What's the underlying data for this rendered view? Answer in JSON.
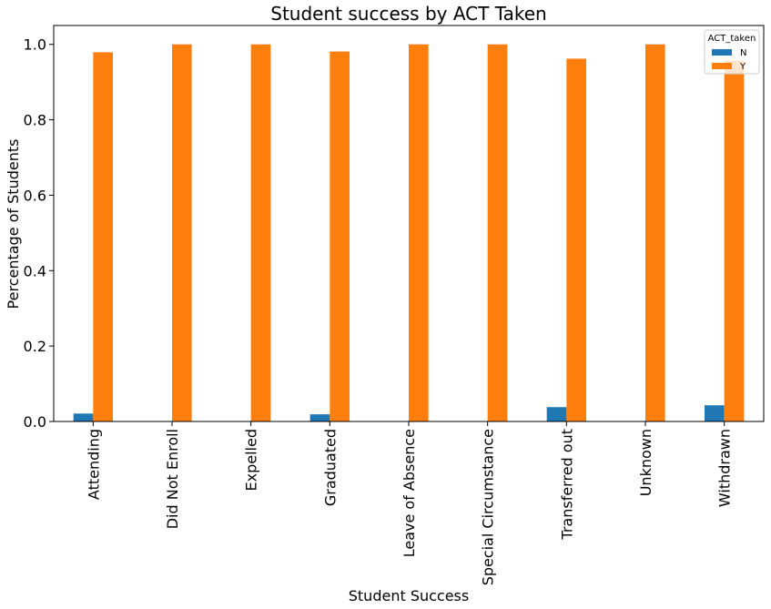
{
  "chart_data": {
    "type": "bar",
    "title": "Student success by ACT Taken",
    "xlabel": "Student Success",
    "ylabel": "Percentage of Students",
    "ylim": [
      0,
      1.05
    ],
    "yticks": [
      "0.0",
      "0.2",
      "0.4",
      "0.6",
      "0.8",
      "1.0"
    ],
    "categories": [
      "Attending",
      "Did Not Enroll",
      "Expelled",
      "Graduated",
      "Leave of Absence",
      "Special Circumstance",
      "Transferred out",
      "Unknown",
      "Withdrawn"
    ],
    "series": [
      {
        "name": "N",
        "color": "#1f77b4",
        "values": [
          0.021,
          0,
          0,
          0.019,
          0,
          0,
          0.038,
          0,
          0.043
        ]
      },
      {
        "name": "Y",
        "color": "#ff7f0e",
        "values": [
          0.979,
          1.0,
          1.0,
          0.981,
          1.0,
          1.0,
          0.962,
          1.0,
          0.957
        ]
      }
    ],
    "legend": {
      "title": "ACT_taken",
      "placement": "top-right"
    },
    "grid": false
  }
}
